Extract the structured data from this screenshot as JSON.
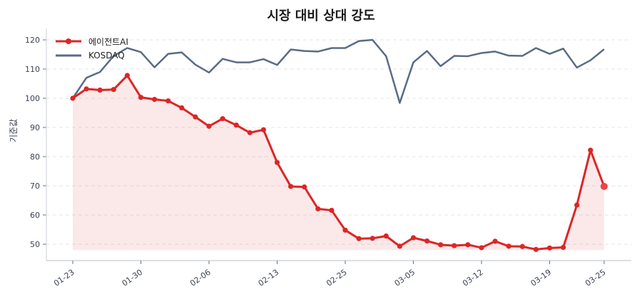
{
  "chart_data": {
    "type": "line",
    "title": "시장 대비 상대 강도",
    "xlabel": "",
    "ylabel": "기준값",
    "ylim": [
      45,
      124
    ],
    "yticks": [
      50,
      60,
      70,
      80,
      90,
      100,
      110,
      120
    ],
    "xtick_labels": [
      "01-23",
      "01-30",
      "02-06",
      "02-13",
      "02-25",
      "03-05",
      "03-12",
      "03-19",
      "03-25"
    ],
    "xtick_indices": [
      0,
      5,
      10,
      15,
      20,
      25,
      30,
      35,
      39
    ],
    "grid": "horizontal dashed",
    "legend_position": "upper left",
    "series": [
      {
        "name": "에이전트AI",
        "color": "#dc2626",
        "marker": "circle",
        "fill_baseline": 48,
        "values": [
          100.0,
          103.2,
          102.8,
          103.0,
          107.8,
          100.3,
          99.6,
          99.1,
          96.7,
          93.6,
          90.4,
          93.0,
          90.8,
          88.2,
          89.2,
          78.0,
          69.8,
          69.6,
          62.1,
          61.6,
          54.8,
          51.9,
          52.0,
          52.8,
          49.3,
          52.2,
          51.1,
          49.8,
          49.5,
          49.8,
          48.8,
          51.0,
          49.3,
          49.2,
          48.2,
          48.7,
          48.9,
          63.4,
          82.2,
          69.8
        ]
      },
      {
        "name": "KOSDAQ",
        "color": "#5a6b84",
        "marker": "none",
        "values": [
          100.0,
          107.0,
          109.0,
          114.5,
          117.2,
          115.8,
          110.6,
          115.2,
          115.7,
          111.5,
          108.8,
          113.5,
          112.3,
          112.3,
          113.4,
          111.4,
          116.7,
          116.2,
          116.0,
          117.2,
          117.2,
          119.6,
          120.0,
          114.4,
          98.4,
          112.3,
          116.2,
          111.0,
          114.5,
          114.4,
          115.5,
          116.0,
          114.6,
          114.5,
          117.2,
          115.2,
          117.0,
          110.5,
          113.0,
          116.8
        ]
      }
    ]
  },
  "legend": {
    "items": [
      {
        "label": "에이전트AI"
      },
      {
        "label": "KOSDAQ"
      }
    ]
  }
}
